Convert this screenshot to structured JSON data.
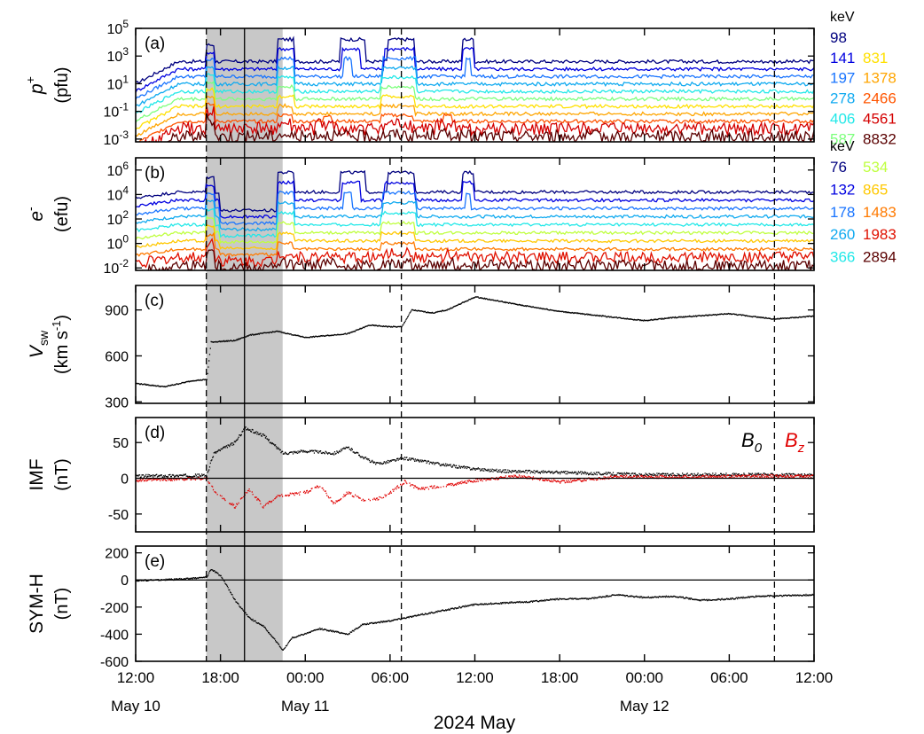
{
  "chart_data": {
    "type": "line",
    "xlabel": "2024 May",
    "x_ticks": [
      "12:00",
      "18:00",
      "00:00",
      "06:00",
      "12:00",
      "18:00",
      "00:00",
      "06:00",
      "12:00"
    ],
    "date_labels": [
      {
        "label": "May 10",
        "at_tick": 0
      },
      {
        "label": "May 11",
        "at_tick": 2
      },
      {
        "label": "May 12",
        "at_tick": 6
      }
    ],
    "xlim_hours": [
      0,
      48
    ],
    "shaded_interval_hours": [
      5.0,
      10.4
    ],
    "solid_line_hours": [
      7.7
    ],
    "dashed_line_hours": [
      5.0,
      18.8,
      45.2
    ],
    "panels": [
      {
        "id": "a",
        "label": "(a)",
        "ylabel_main": "p",
        "ylabel_sup": "+",
        "ylabel_unit": "(pfu)",
        "yscale": "log",
        "ytick_exponents": [
          5,
          3,
          1,
          -1,
          -3
        ],
        "ylim_exponents": [
          -3.2,
          5
        ],
        "legend_header": "keV",
        "legend_col1": [
          {
            "label": "98",
            "color": "#00007f"
          },
          {
            "label": "141",
            "color": "#0000e0"
          },
          {
            "label": "197",
            "color": "#1a75ff"
          },
          {
            "label": "278",
            "color": "#10aaf0"
          },
          {
            "label": "406",
            "color": "#22e8e8"
          },
          {
            "label": "587",
            "color": "#7dff7d"
          }
        ],
        "legend_col2": [
          {
            "label": "831",
            "color": "#ffe000"
          },
          {
            "label": "1378",
            "color": "#ffa500"
          },
          {
            "label": "2466",
            "color": "#ff5500"
          },
          {
            "label": "4561",
            "color": "#d40000"
          },
          {
            "label": "8832",
            "color": "#5a0000"
          }
        ]
      },
      {
        "id": "b",
        "label": "(b)",
        "ylabel_main": "e",
        "ylabel_sup": "-",
        "ylabel_unit": "(efu)",
        "yscale": "log",
        "ytick_exponents": [
          6,
          4,
          2,
          0,
          -2
        ],
        "ylim_exponents": [
          -2.2,
          7
        ],
        "legend_header": "keV",
        "legend_col1": [
          {
            "label": "76",
            "color": "#00007f"
          },
          {
            "label": "132",
            "color": "#0000e0"
          },
          {
            "label": "178",
            "color": "#1a75ff"
          },
          {
            "label": "260",
            "color": "#10aaf0"
          },
          {
            "label": "366",
            "color": "#22e8e8"
          }
        ],
        "legend_col2": [
          {
            "label": "534",
            "color": "#bfff3f"
          },
          {
            "label": "865",
            "color": "#ffc800"
          },
          {
            "label": "1483",
            "color": "#ff7a00"
          },
          {
            "label": "1983",
            "color": "#e01000"
          },
          {
            "label": "2894",
            "color": "#5a0000"
          }
        ]
      },
      {
        "id": "c",
        "label": "(c)",
        "ylabel_main": "V",
        "ylabel_sub": "sw",
        "ylabel_unit": "(km s",
        "ylabel_unit_sup": "-1",
        "ylabel_unit_close": ")",
        "yscale": "linear",
        "yticks": [
          900,
          600,
          300
        ],
        "ylim": [
          290,
          1060
        ],
        "series": [
          {
            "color": "#000000",
            "points": [
              [
                0,
                420
              ],
              [
                2,
                398
              ],
              [
                4,
                438
              ],
              [
                5,
                445
              ],
              [
                5.3,
                690
              ],
              [
                7,
                700
              ],
              [
                8,
                735
              ],
              [
                10,
                760
              ],
              [
                12,
                720
              ],
              [
                15,
                745
              ],
              [
                16.5,
                800
              ],
              [
                18,
                790
              ],
              [
                18.8,
                790
              ],
              [
                19.5,
                900
              ],
              [
                21,
                880
              ],
              [
                22,
                900
              ],
              [
                24,
                985
              ],
              [
                27,
                935
              ],
              [
                30,
                890
              ],
              [
                33,
                860
              ],
              [
                36,
                830
              ],
              [
                38,
                850
              ],
              [
                42,
                875
              ],
              [
                45.2,
                840
              ],
              [
                48,
                860
              ]
            ]
          }
        ]
      },
      {
        "id": "d",
        "label": "(d)",
        "ylabel_main": "IMF",
        "ylabel_unit": "(nT)",
        "yscale": "linear",
        "yticks": [
          50,
          0,
          -50
        ],
        "ylim": [
          -75,
          85
        ],
        "legend_items": [
          {
            "label": "B",
            "sub": "0",
            "color": "#000000"
          },
          {
            "label": "B",
            "sub": "z",
            "color": "#e00000"
          }
        ],
        "series": [
          {
            "name": "B0",
            "color": "#000000",
            "points": [
              [
                0,
                3
              ],
              [
                5,
                4
              ],
              [
                5.5,
                35
              ],
              [
                7,
                50
              ],
              [
                7.7,
                70
              ],
              [
                9,
                60
              ],
              [
                10.4,
                35
              ],
              [
                12,
                38
              ],
              [
                14,
                35
              ],
              [
                15,
                43
              ],
              [
                16,
                30
              ],
              [
                17,
                20
              ],
              [
                18,
                24
              ],
              [
                19,
                28
              ],
              [
                22,
                18
              ],
              [
                24,
                13
              ],
              [
                26,
                10
              ],
              [
                30,
                8
              ],
              [
                36,
                5
              ],
              [
                42,
                5
              ],
              [
                45,
                5
              ],
              [
                48,
                4
              ]
            ]
          },
          {
            "name": "Bz",
            "color": "#e00000",
            "points": [
              [
                0,
                -3
              ],
              [
                5,
                0
              ],
              [
                5.6,
                -20
              ],
              [
                7,
                -40
              ],
              [
                8,
                -15
              ],
              [
                9,
                -40
              ],
              [
                10,
                -25
              ],
              [
                12,
                -20
              ],
              [
                13,
                -10
              ],
              [
                14,
                -35
              ],
              [
                15,
                -20
              ],
              [
                16,
                -30
              ],
              [
                17,
                -30
              ],
              [
                18,
                -20
              ],
              [
                19,
                -5
              ],
              [
                20,
                -15
              ],
              [
                22,
                -10
              ],
              [
                24,
                -3
              ],
              [
                27,
                3
              ],
              [
                30,
                -5
              ],
              [
                34,
                2
              ],
              [
                40,
                2
              ],
              [
                45,
                3
              ],
              [
                48,
                3
              ]
            ]
          }
        ]
      },
      {
        "id": "e",
        "label": "(e)",
        "ylabel_main": "SYM-H",
        "ylabel_unit": "(nT)",
        "yscale": "linear",
        "yticks": [
          200,
          0,
          -200,
          -400,
          -600
        ],
        "ylim": [
          -600,
          250
        ],
        "series": [
          {
            "color": "#000000",
            "points": [
              [
                0,
                -5
              ],
              [
                3,
                5
              ],
              [
                5,
                20
              ],
              [
                5.3,
                80
              ],
              [
                6,
                30
              ],
              [
                7,
                -150
              ],
              [
                8,
                -280
              ],
              [
                9,
                -340
              ],
              [
                9.8,
                -440
              ],
              [
                10.4,
                -520
              ],
              [
                11,
                -430
              ],
              [
                13,
                -360
              ],
              [
                15,
                -400
              ],
              [
                16,
                -330
              ],
              [
                18,
                -300
              ],
              [
                20,
                -260
              ],
              [
                22,
                -220
              ],
              [
                24,
                -180
              ],
              [
                26,
                -170
              ],
              [
                28,
                -160
              ],
              [
                30,
                -140
              ],
              [
                32,
                -140
              ],
              [
                34,
                -110
              ],
              [
                36,
                -130
              ],
              [
                38,
                -120
              ],
              [
                40,
                -150
              ],
              [
                42,
                -140
              ],
              [
                44,
                -120
              ],
              [
                46,
                -115
              ],
              [
                48,
                -110
              ]
            ]
          }
        ]
      }
    ]
  }
}
